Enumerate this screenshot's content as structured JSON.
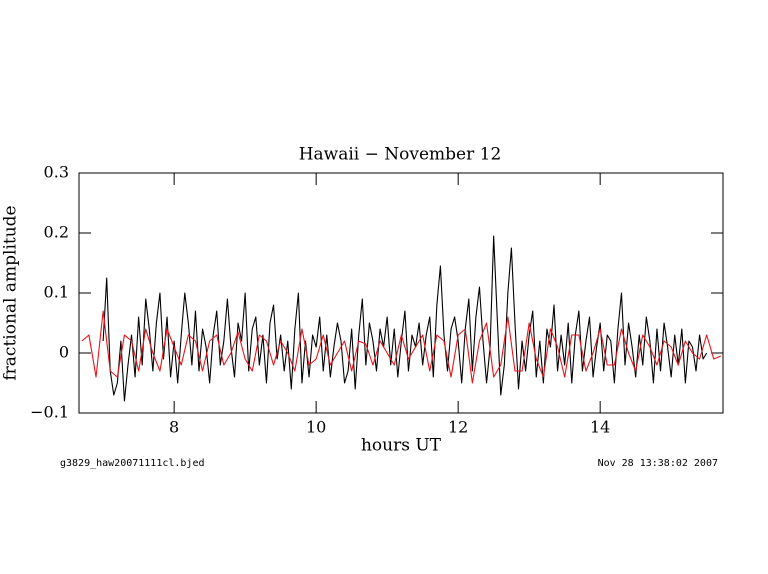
{
  "chart_data": {
    "type": "line",
    "title": "Hawaii − November 12",
    "x_label": "hours UT",
    "y_label": "fractional amplitude",
    "footer_left": "g3829_haw20071111cl.bjed",
    "footer_right": "Nov 28 13:38:02 2007",
    "xlim": [
      6.66,
      15.73
    ],
    "ylim": [
      -0.1,
      0.3
    ],
    "xticks": [
      8,
      10,
      12,
      14
    ],
    "yticks": [
      {
        "value": -0.1,
        "label": "−0.1"
      },
      0,
      0.1,
      0.2,
      0.3
    ],
    "grid": false,
    "series": [
      {
        "color": "#000000",
        "x": [
          7.0,
          7.05,
          7.1,
          7.15,
          7.2,
          7.25,
          7.3,
          7.35,
          7.4,
          7.45,
          7.5,
          7.55,
          7.6,
          7.65,
          7.7,
          7.75,
          7.8,
          7.85,
          7.9,
          7.95,
          8.0,
          8.05,
          8.1,
          8.15,
          8.2,
          8.25,
          8.3,
          8.35,
          8.4,
          8.45,
          8.5,
          8.55,
          8.6,
          8.65,
          8.7,
          8.75,
          8.8,
          8.85,
          8.9,
          8.95,
          9.0,
          9.05,
          9.1,
          9.15,
          9.2,
          9.25,
          9.3,
          9.35,
          9.4,
          9.45,
          9.5,
          9.55,
          9.6,
          9.65,
          9.7,
          9.75,
          9.8,
          9.85,
          9.9,
          9.95,
          10.0,
          10.05,
          10.1,
          10.15,
          10.2,
          10.25,
          10.3,
          10.35,
          10.4,
          10.45,
          10.5,
          10.55,
          10.6,
          10.65,
          10.7,
          10.75,
          10.8,
          10.85,
          10.9,
          10.95,
          11.0,
          11.05,
          11.1,
          11.15,
          11.2,
          11.25,
          11.3,
          11.35,
          11.4,
          11.45,
          11.5,
          11.55,
          11.6,
          11.65,
          11.7,
          11.75,
          11.8,
          11.85,
          11.9,
          11.95,
          12.0,
          12.05,
          12.1,
          12.15,
          12.2,
          12.25,
          12.3,
          12.35,
          12.4,
          12.45,
          12.5,
          12.55,
          12.6,
          12.65,
          12.7,
          12.75,
          12.8,
          12.85,
          12.9,
          12.95,
          13.0,
          13.05,
          13.1,
          13.15,
          13.2,
          13.25,
          13.3,
          13.35,
          13.4,
          13.45,
          13.5,
          13.55,
          13.6,
          13.65,
          13.7,
          13.75,
          13.8,
          13.85,
          13.9,
          13.95,
          14.0,
          14.05,
          14.1,
          14.15,
          14.2,
          14.25,
          14.3,
          14.35,
          14.4,
          14.45,
          14.5,
          14.55,
          14.6,
          14.65,
          14.7,
          14.75,
          14.8,
          14.85,
          14.9,
          14.95,
          15.0,
          15.05,
          15.1,
          15.15,
          15.2,
          15.25,
          15.3,
          15.35,
          15.4,
          15.45,
          15.5
        ],
        "values": [
          0.02,
          0.125,
          -0.03,
          -0.07,
          -0.05,
          0.02,
          -0.08,
          -0.02,
          0.03,
          -0.04,
          0.06,
          -0.02,
          0.09,
          0.04,
          -0.03,
          0.05,
          0.1,
          -0.01,
          0.06,
          -0.04,
          0.02,
          -0.05,
          0.03,
          0.1,
          0.05,
          -0.02,
          0.07,
          -0.03,
          0.04,
          0.01,
          -0.05,
          0.03,
          0.07,
          -0.02,
          0.02,
          0.09,
          0.01,
          -0.04,
          0.05,
          0.02,
          0.1,
          -0.03,
          0.04,
          0.06,
          -0.02,
          0.03,
          -0.05,
          0.05,
          0.08,
          -0.01,
          0.03,
          -0.03,
          0.02,
          -0.06,
          0.04,
          0.1,
          -0.05,
          0.02,
          -0.04,
          0.03,
          0.01,
          0.06,
          -0.03,
          0.03,
          -0.04,
          0.01,
          0.05,
          0.02,
          -0.05,
          -0.03,
          0.04,
          -0.06,
          0.03,
          0.09,
          -0.02,
          0.05,
          0.02,
          -0.03,
          0.04,
          0.01,
          0.06,
          -0.02,
          0.04,
          -0.04,
          0.02,
          0.07,
          -0.03,
          0.03,
          0.01,
          0.05,
          -0.02,
          0.03,
          0.06,
          -0.04,
          0.08,
          0.145,
          0.03,
          -0.03,
          0.04,
          0.06,
          0.02,
          -0.05,
          0.04,
          0.09,
          -0.03,
          0.06,
          0.11,
          0.02,
          -0.05,
          0.01,
          0.195,
          0.06,
          -0.07,
          -0.02,
          0.1,
          0.175,
          0.05,
          -0.06,
          0.02,
          -0.03,
          0.03,
          0.07,
          -0.04,
          0.02,
          -0.05,
          0.04,
          0.01,
          0.08,
          -0.03,
          0.03,
          -0.02,
          0.05,
          -0.05,
          0.03,
          0.07,
          -0.03,
          0.02,
          0.06,
          -0.04,
          0.01,
          0.05,
          -0.03,
          0.03,
          0.02,
          -0.05,
          0.04,
          0.1,
          -0.02,
          0.05,
          0.01,
          -0.04,
          0.03,
          -0.02,
          0.06,
          0.02,
          -0.05,
          0.04,
          -0.03,
          0.05,
          0.01,
          -0.04,
          0.03,
          -0.02,
          0.04,
          -0.05,
          0.02,
          0.01,
          -0.03,
          0.03,
          -0.01,
          0.0
        ]
      },
      {
        "color": "#e8141a",
        "x": [
          6.7,
          6.8,
          6.9,
          7.0,
          7.1,
          7.2,
          7.3,
          7.4,
          7.5,
          7.6,
          7.7,
          7.8,
          7.9,
          8.0,
          8.1,
          8.2,
          8.3,
          8.4,
          8.5,
          8.6,
          8.7,
          8.8,
          8.9,
          9.0,
          9.1,
          9.2,
          9.3,
          9.4,
          9.5,
          9.6,
          9.7,
          9.8,
          9.9,
          10.0,
          10.1,
          10.2,
          10.3,
          10.4,
          10.5,
          10.6,
          10.7,
          10.8,
          10.9,
          11.0,
          11.1,
          11.2,
          11.3,
          11.4,
          11.5,
          11.6,
          11.7,
          11.8,
          11.9,
          12.0,
          12.1,
          12.2,
          12.3,
          12.4,
          12.5,
          12.6,
          12.7,
          12.8,
          12.9,
          13.0,
          13.1,
          13.2,
          13.3,
          13.4,
          13.5,
          13.6,
          13.7,
          13.8,
          13.9,
          14.0,
          14.1,
          14.2,
          14.3,
          14.4,
          14.5,
          14.6,
          14.7,
          14.8,
          14.9,
          15.0,
          15.1,
          15.2,
          15.3,
          15.4,
          15.5,
          15.6,
          15.7
        ],
        "values": [
          0.02,
          0.03,
          -0.04,
          0.07,
          -0.03,
          -0.04,
          0.03,
          0.02,
          -0.03,
          0.04,
          0.0,
          -0.03,
          0.04,
          0.01,
          -0.02,
          0.03,
          0.02,
          -0.03,
          0.02,
          0.03,
          -0.02,
          0.0,
          0.035,
          -0.01,
          -0.03,
          0.03,
          0.02,
          -0.02,
          0.02,
          0.0,
          -0.03,
          0.04,
          -0.02,
          -0.01,
          0.03,
          -0.02,
          0.0,
          0.02,
          -0.03,
          0.02,
          0.015,
          -0.02,
          0.02,
          0.0,
          -0.02,
          0.03,
          -0.01,
          0.01,
          0.03,
          -0.03,
          0.03,
          0.02,
          -0.04,
          0.03,
          0.04,
          -0.05,
          0.02,
          0.05,
          -0.04,
          -0.02,
          0.06,
          -0.03,
          -0.03,
          0.05,
          -0.01,
          -0.04,
          0.04,
          0.01,
          -0.04,
          0.03,
          0.03,
          -0.03,
          0.0,
          0.04,
          -0.02,
          -0.02,
          0.04,
          0.0,
          -0.03,
          0.03,
          0.01,
          -0.02,
          0.02,
          0.01,
          -0.02,
          0.02,
          0.0,
          -0.01,
          0.03,
          -0.01,
          -0.005
        ]
      }
    ]
  }
}
